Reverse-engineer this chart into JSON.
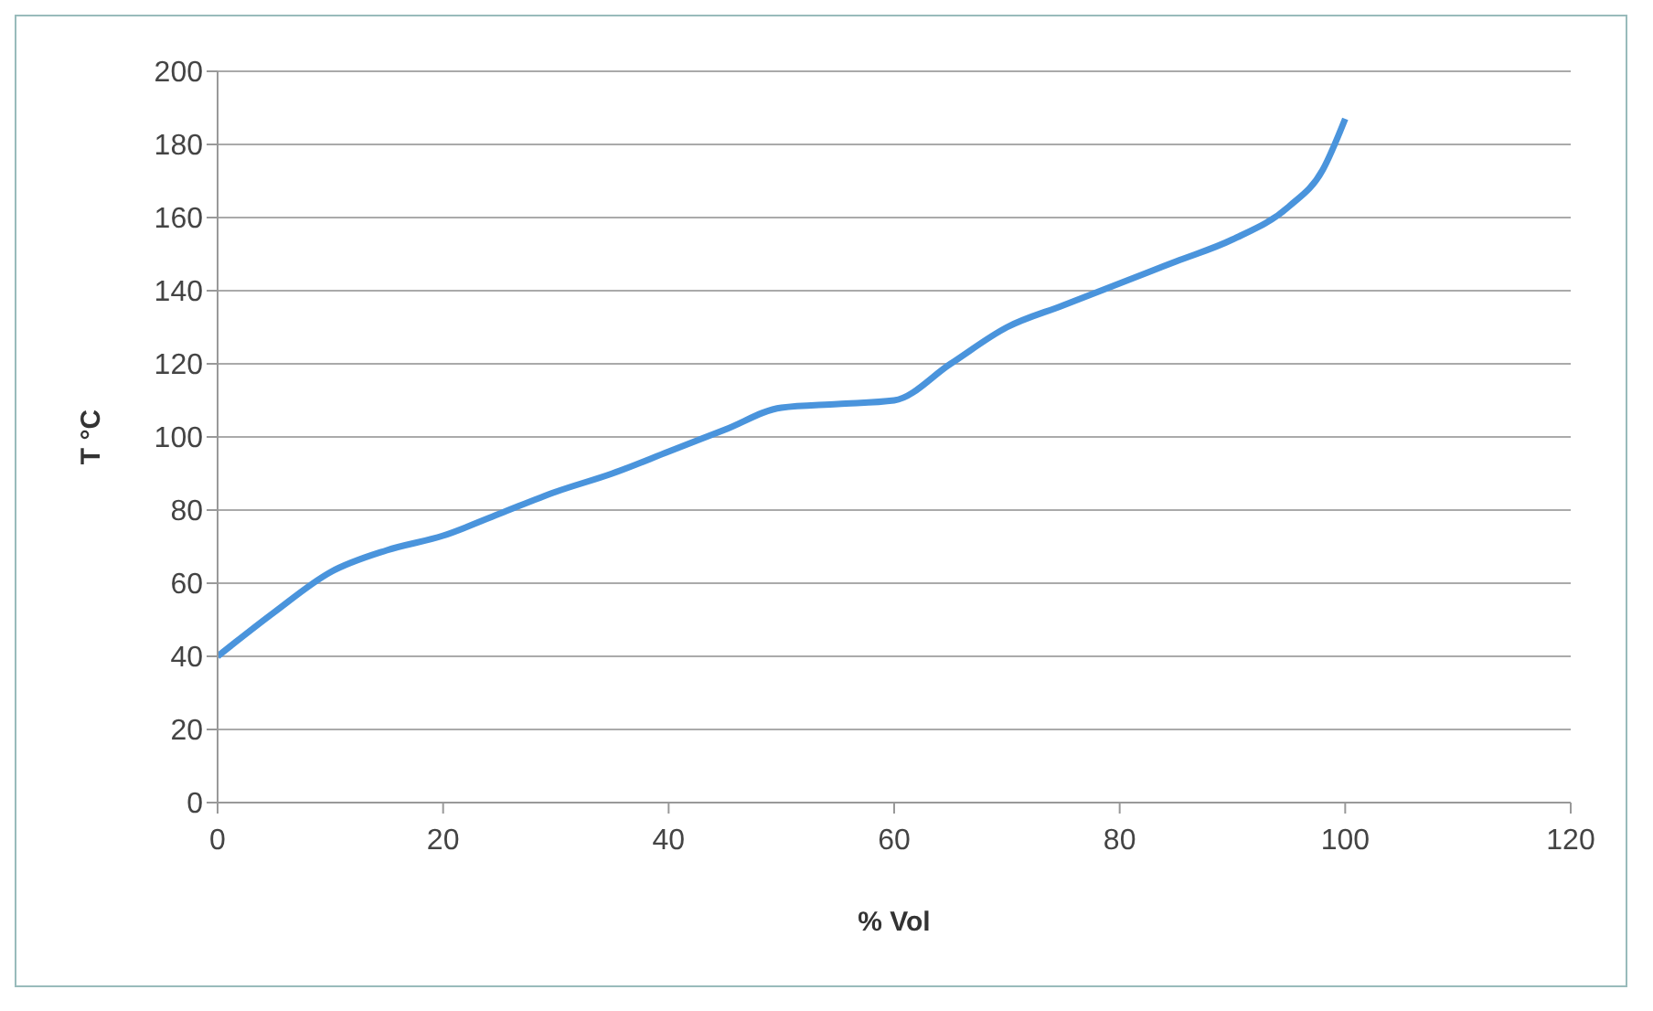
{
  "chart_data": {
    "type": "line",
    "xlabel": "% Vol",
    "ylabel": "T °C",
    "x": [
      0,
      5,
      10,
      15,
      20,
      25,
      30,
      35,
      40,
      45,
      50,
      55,
      60,
      65,
      70,
      75,
      80,
      85,
      90,
      95,
      98,
      100
    ],
    "series": [
      {
        "color": "#4a94dc",
        "values": [
          40,
          52,
          63,
          69,
          73,
          79,
          85,
          90,
          96,
          102,
          108,
          109,
          110,
          120,
          130,
          136,
          142,
          148,
          154,
          163,
          173,
          187
        ]
      }
    ],
    "xlim": [
      0,
      120
    ],
    "xticks": [
      0,
      20,
      40,
      60,
      80,
      100,
      120
    ],
    "ylim": [
      0,
      200
    ],
    "yticks": [
      0,
      20,
      40,
      60,
      80,
      100,
      120,
      140,
      160,
      180,
      200
    ],
    "grid": "y",
    "legend": false,
    "marker": "none",
    "line_style": "solid"
  }
}
